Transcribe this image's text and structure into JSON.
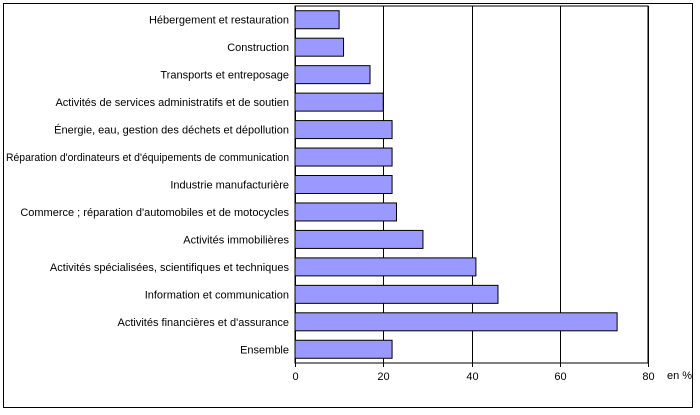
{
  "chart_data": {
    "type": "bar",
    "orientation": "horizontal",
    "title": "",
    "xlabel": "",
    "ylabel": "",
    "unit_label": "en %",
    "categories": [
      "Hébergement et restauration",
      "Construction",
      "Transports et entreposage",
      "Activités de services administratifs et de soutien",
      "Énergie, eau, gestion des déchets et dépollution",
      "Réparation d'ordinateurs et d'équipements de communication",
      "Industrie manufacturière",
      "Commerce ; réparation d'automobiles et de motocycles",
      "Activités immobilières",
      "Activités spécialisées, scientifiques et techniques",
      "Information et communication",
      "Activités financières et d'assurance",
      "Ensemble"
    ],
    "values": [
      10,
      11,
      17,
      20,
      22,
      22,
      22,
      23,
      29,
      41,
      46,
      73,
      22
    ],
    "xlim": [
      0,
      80
    ],
    "xticks": [
      0,
      20,
      40,
      60,
      80
    ],
    "grid": "vertical",
    "bar_color": "#9999ff",
    "bar_edge_color": "#000000"
  }
}
